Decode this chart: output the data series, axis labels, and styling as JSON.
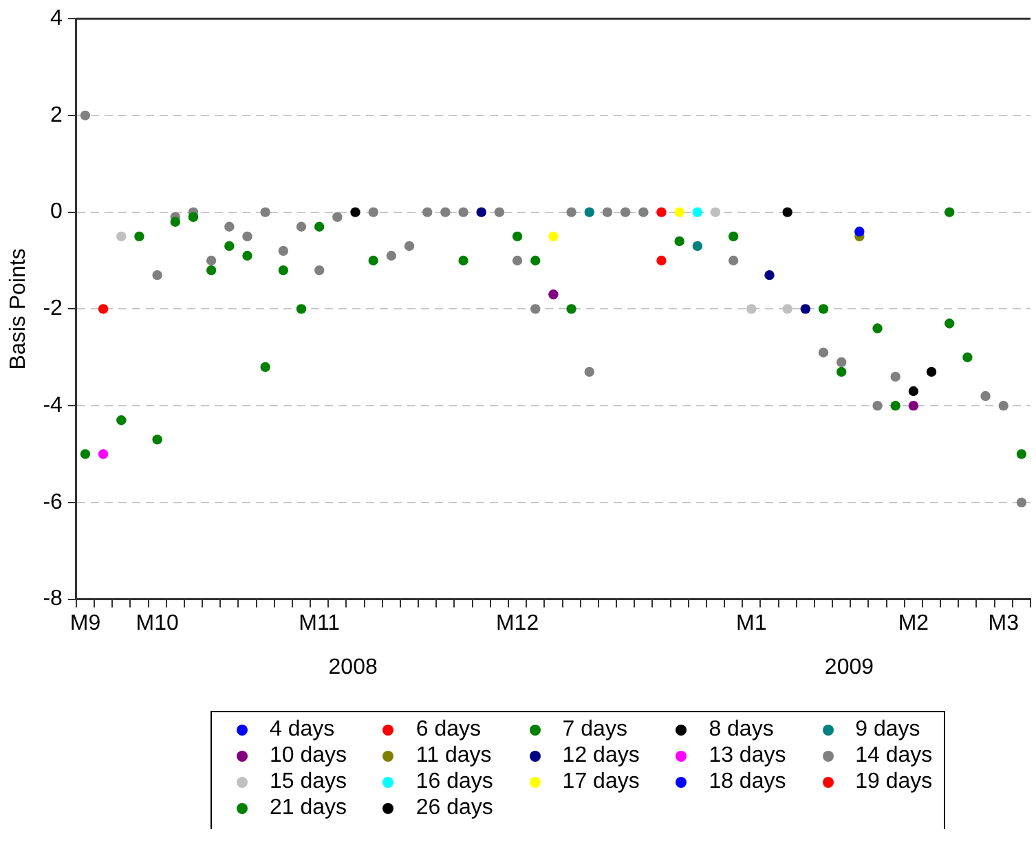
{
  "chart_data": {
    "type": "scatter",
    "ylabel": "Basis Points",
    "marker": "circle",
    "grid": "y",
    "legend": "bottom",
    "ylim": [
      -8,
      4
    ],
    "yticks": [
      -8,
      -6,
      -4,
      -2,
      0,
      2,
      4
    ],
    "categories": [
      "M9",
      null,
      null,
      null,
      "M10",
      null,
      null,
      null,
      null,
      null,
      null,
      null,
      null,
      "M11",
      null,
      null,
      null,
      null,
      null,
      null,
      null,
      null,
      null,
      null,
      "M12",
      null,
      null,
      null,
      null,
      null,
      null,
      null,
      null,
      null,
      null,
      null,
      null,
      "M1",
      null,
      null,
      null,
      null,
      null,
      null,
      null,
      null,
      "M2",
      null,
      null,
      null,
      null,
      "M3",
      null
    ],
    "annotations": [
      "2008",
      "2009"
    ],
    "series": [
      {
        "name": "4 days",
        "color": "#0000ff",
        "values": [
          null,
          null,
          null,
          null,
          null,
          null,
          null,
          null,
          null,
          null,
          null,
          null,
          null,
          null,
          null,
          null,
          null,
          null,
          null,
          null,
          null,
          null,
          null,
          null,
          null,
          null,
          null,
          null,
          null,
          null,
          null,
          null,
          null,
          null,
          null,
          null,
          null,
          null,
          null,
          null,
          null,
          null,
          null,
          -0.4,
          null,
          null,
          null,
          null,
          null,
          null,
          null,
          null,
          null
        ]
      },
      {
        "name": "6 days",
        "color": "#ff0000",
        "values": [
          null,
          -2.0,
          null,
          null,
          null,
          null,
          null,
          null,
          null,
          null,
          null,
          null,
          null,
          null,
          null,
          null,
          null,
          null,
          null,
          null,
          null,
          null,
          null,
          null,
          null,
          null,
          null,
          null,
          null,
          null,
          null,
          null,
          -1.0,
          null,
          null,
          null,
          null,
          null,
          null,
          null,
          null,
          null,
          null,
          null,
          null,
          null,
          null,
          null,
          null,
          null,
          null,
          null,
          null
        ]
      },
      {
        "name": "7 days",
        "color": "#008000",
        "values": [
          -5.0,
          null,
          -4.3,
          -0.5,
          -4.7,
          -0.2,
          -0.1,
          -1.2,
          -0.7,
          -0.9,
          null,
          -1.2,
          -2.0,
          -0.3,
          null,
          null,
          -1.0,
          null,
          null,
          null,
          null,
          -1.0,
          null,
          null,
          -0.5,
          -1.0,
          null,
          -2.0,
          null,
          null,
          null,
          null,
          null,
          -0.6,
          null,
          null,
          -0.5,
          null,
          null,
          null,
          null,
          -2.0,
          -3.3,
          null,
          -2.4,
          -4.0,
          null,
          null,
          -2.3,
          -3.0,
          null,
          null,
          null
        ]
      },
      {
        "name": "8 days",
        "color": "#000000",
        "values": [
          null,
          null,
          null,
          null,
          null,
          null,
          null,
          null,
          null,
          null,
          null,
          null,
          null,
          null,
          null,
          0,
          null,
          null,
          null,
          null,
          null,
          null,
          null,
          null,
          null,
          null,
          null,
          null,
          null,
          null,
          null,
          null,
          null,
          null,
          null,
          null,
          null,
          null,
          null,
          0,
          null,
          null,
          null,
          null,
          null,
          null,
          null,
          null,
          null,
          null,
          null,
          null,
          null
        ]
      },
      {
        "name": "9 days",
        "color": "#008080",
        "values": [
          null,
          null,
          null,
          null,
          null,
          null,
          null,
          null,
          null,
          null,
          null,
          null,
          null,
          null,
          null,
          null,
          null,
          null,
          null,
          null,
          null,
          null,
          null,
          null,
          null,
          null,
          null,
          null,
          0,
          null,
          null,
          null,
          null,
          null,
          -0.7,
          null,
          null,
          null,
          null,
          null,
          null,
          null,
          null,
          null,
          null,
          null,
          null,
          null,
          null,
          null,
          null,
          null,
          null
        ]
      },
      {
        "name": "10 days",
        "color": "#800080",
        "values": [
          null,
          null,
          null,
          null,
          null,
          null,
          null,
          null,
          null,
          null,
          null,
          null,
          null,
          null,
          null,
          null,
          null,
          null,
          null,
          null,
          null,
          null,
          null,
          null,
          null,
          null,
          -1.7,
          null,
          null,
          null,
          null,
          null,
          null,
          null,
          null,
          null,
          null,
          null,
          null,
          null,
          null,
          null,
          null,
          null,
          null,
          null,
          -4.0,
          null,
          null,
          null,
          null,
          null,
          null
        ]
      },
      {
        "name": "11 days",
        "color": "#808000",
        "values": [
          null,
          null,
          null,
          null,
          null,
          null,
          null,
          null,
          null,
          null,
          null,
          null,
          null,
          null,
          null,
          null,
          null,
          null,
          null,
          null,
          null,
          null,
          null,
          null,
          null,
          null,
          null,
          null,
          null,
          null,
          null,
          null,
          null,
          null,
          null,
          null,
          null,
          null,
          null,
          null,
          null,
          null,
          null,
          -0.5,
          null,
          null,
          null,
          null,
          null,
          null,
          null,
          null,
          null
        ]
      },
      {
        "name": "12 days",
        "color": "#000080",
        "values": [
          null,
          null,
          null,
          null,
          null,
          null,
          null,
          null,
          null,
          null,
          null,
          null,
          null,
          null,
          null,
          null,
          null,
          null,
          null,
          null,
          null,
          null,
          0,
          null,
          null,
          null,
          null,
          null,
          null,
          null,
          null,
          null,
          null,
          null,
          null,
          null,
          null,
          null,
          -1.3,
          null,
          -2.0,
          null,
          null,
          null,
          null,
          null,
          null,
          null,
          null,
          null,
          null,
          null,
          null
        ]
      },
      {
        "name": "13 days",
        "color": "#ff00ff",
        "values": [
          null,
          -5.0,
          null,
          null,
          null,
          null,
          null,
          null,
          null,
          null,
          null,
          null,
          null,
          null,
          null,
          null,
          null,
          null,
          null,
          null,
          null,
          null,
          null,
          null,
          null,
          null,
          null,
          null,
          null,
          null,
          null,
          null,
          null,
          null,
          null,
          null,
          null,
          null,
          null,
          null,
          null,
          null,
          null,
          null,
          null,
          null,
          null,
          null,
          null,
          null,
          null,
          null,
          null
        ]
      },
      {
        "name": "14 days",
        "color": "#808080",
        "values": [
          2.0,
          null,
          null,
          null,
          -1.3,
          -0.1,
          0,
          -1.0,
          -0.3,
          -0.5,
          0,
          -0.8,
          -0.3,
          -1.2,
          -0.1,
          null,
          0,
          -0.9,
          -0.7,
          0,
          0,
          0,
          null,
          0,
          -1.0,
          -2.0,
          null,
          0,
          -3.3,
          0,
          0,
          0,
          null,
          null,
          null,
          null,
          -1.0,
          null,
          null,
          null,
          null,
          -2.9,
          -3.1,
          null,
          -4.0,
          -3.4,
          null,
          null,
          null,
          null,
          -3.8,
          -4.0,
          -6.0
        ]
      },
      {
        "name": "15 days",
        "color": "#c0c0c0",
        "values": [
          null,
          null,
          -0.5,
          null,
          null,
          null,
          null,
          null,
          null,
          null,
          null,
          null,
          null,
          null,
          null,
          null,
          null,
          null,
          null,
          null,
          null,
          null,
          null,
          null,
          null,
          null,
          null,
          null,
          null,
          null,
          null,
          null,
          null,
          null,
          null,
          0,
          null,
          -2.0,
          null,
          -2.0,
          null,
          null,
          null,
          null,
          null,
          null,
          null,
          null,
          null,
          null,
          null,
          null,
          null
        ]
      },
      {
        "name": "16 days",
        "color": "#00ffff",
        "values": [
          null,
          null,
          null,
          null,
          null,
          null,
          null,
          null,
          null,
          null,
          null,
          null,
          null,
          null,
          null,
          null,
          null,
          null,
          null,
          null,
          null,
          null,
          null,
          null,
          null,
          null,
          null,
          null,
          null,
          null,
          null,
          null,
          null,
          null,
          0,
          null,
          null,
          null,
          null,
          null,
          null,
          null,
          null,
          null,
          null,
          null,
          null,
          null,
          null,
          null,
          null,
          null,
          null
        ]
      },
      {
        "name": "17 days",
        "color": "#ffff00",
        "values": [
          null,
          null,
          null,
          null,
          null,
          null,
          null,
          null,
          null,
          null,
          null,
          null,
          null,
          null,
          null,
          null,
          null,
          null,
          null,
          null,
          null,
          null,
          null,
          null,
          null,
          null,
          -0.5,
          null,
          null,
          null,
          null,
          null,
          null,
          0,
          null,
          null,
          null,
          null,
          null,
          null,
          null,
          null,
          null,
          null,
          null,
          null,
          null,
          null,
          null,
          null,
          null,
          null,
          null
        ]
      },
      {
        "name": "18 days",
        "color": "#0000ff",
        "values": [
          null,
          null,
          null,
          null,
          null,
          null,
          null,
          null,
          null,
          null,
          null,
          null,
          null,
          null,
          null,
          null,
          null,
          null,
          null,
          null,
          null,
          null,
          null,
          null,
          null,
          null,
          null,
          null,
          null,
          null,
          null,
          null,
          null,
          null,
          null,
          null,
          null,
          null,
          null,
          null,
          null,
          null,
          null,
          null,
          null,
          null,
          null,
          null,
          null,
          null,
          null,
          null,
          null
        ]
      },
      {
        "name": "19 days",
        "color": "#ff0000",
        "values": [
          null,
          null,
          null,
          null,
          null,
          null,
          null,
          null,
          null,
          null,
          null,
          null,
          null,
          null,
          null,
          null,
          null,
          null,
          null,
          null,
          null,
          null,
          null,
          null,
          null,
          null,
          null,
          null,
          null,
          null,
          null,
          null,
          0,
          null,
          null,
          null,
          null,
          null,
          null,
          null,
          null,
          null,
          null,
          null,
          null,
          null,
          null,
          null,
          null,
          null,
          null,
          null,
          null
        ]
      },
      {
        "name": "21 days",
        "color": "#008000",
        "values": [
          null,
          null,
          null,
          null,
          null,
          null,
          null,
          null,
          null,
          null,
          -3.2,
          null,
          null,
          null,
          null,
          null,
          null,
          null,
          null,
          null,
          null,
          null,
          null,
          null,
          null,
          null,
          null,
          null,
          null,
          null,
          null,
          null,
          null,
          null,
          null,
          null,
          null,
          null,
          null,
          null,
          null,
          null,
          null,
          null,
          null,
          null,
          null,
          null,
          0,
          null,
          null,
          null,
          -5.0
        ]
      },
      {
        "name": "26 days",
        "color": "#000000",
        "values": [
          null,
          null,
          null,
          null,
          null,
          null,
          null,
          null,
          null,
          null,
          null,
          null,
          null,
          null,
          null,
          null,
          null,
          null,
          null,
          null,
          null,
          null,
          null,
          null,
          null,
          null,
          null,
          null,
          null,
          null,
          null,
          null,
          null,
          null,
          null,
          null,
          null,
          null,
          null,
          null,
          null,
          null,
          null,
          null,
          null,
          null,
          -3.7,
          -3.3,
          null,
          null,
          null,
          null,
          null
        ]
      }
    ]
  }
}
